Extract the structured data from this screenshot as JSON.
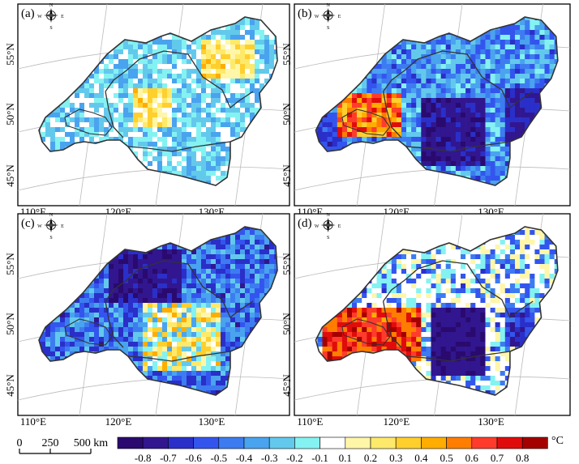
{
  "panels": [
    {
      "label": "(a)",
      "pattern": "weak"
    },
    {
      "label": "(b)",
      "pattern": "mixed"
    },
    {
      "label": "(c)",
      "pattern": "cool"
    },
    {
      "label": "(d)",
      "pattern": "hot"
    }
  ],
  "lat_labels": [
    "55°N",
    "50°N",
    "45°N"
  ],
  "lon_labels": [
    "110°E",
    "120°E",
    "130°E"
  ],
  "compass": {
    "n": "N",
    "s": "S",
    "e": "E",
    "w": "W"
  },
  "scale_bar": {
    "labels": [
      "0",
      "250",
      "500 km"
    ]
  },
  "legend": {
    "unit": "°C",
    "tick_labels": [
      "-0.8",
      "-0.7",
      "-0.6",
      "-0.5",
      "-0.4",
      "-0.3",
      "-0.2",
      "-0.1",
      "0.1",
      "0.2",
      "0.3",
      "0.4",
      "0.5",
      "0.6",
      "0.7",
      "0.8"
    ],
    "colors": [
      "#2a0a6e",
      "#31168f",
      "#2a2fc9",
      "#3355ee",
      "#3d7cf0",
      "#4aa3ee",
      "#63c9ec",
      "#85f2f2",
      "#ffffff",
      "#fff6a8",
      "#ffe96a",
      "#ffcf2e",
      "#ffad00",
      "#ff7d00",
      "#ff3c2c",
      "#e00c0c",
      "#a40000"
    ]
  }
}
